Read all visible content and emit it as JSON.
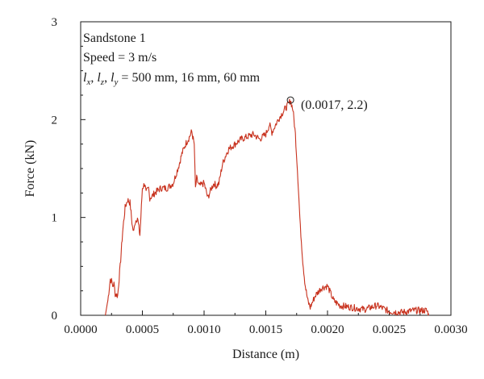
{
  "chart_data": {
    "type": "line",
    "title": "",
    "xlabel": "Distance (m)",
    "ylabel": "Force (kN)",
    "xlim": [
      0.0,
      0.003
    ],
    "ylim": [
      0,
      3
    ],
    "x_ticks": [
      0.0,
      0.0005,
      0.001,
      0.0015,
      0.002,
      0.0025,
      0.003
    ],
    "x_tick_labels": [
      "0.0000",
      "0.0005",
      "0.0010",
      "0.0015",
      "0.0020",
      "0.0025",
      "0.0030"
    ],
    "y_ticks": [
      0,
      1,
      2,
      3
    ],
    "y_tick_labels": [
      "0",
      "1",
      "2",
      "3"
    ],
    "grid": false,
    "line_color": "#c8321e",
    "series": [
      {
        "x": [
          0.0002,
          0.00022,
          0.00024,
          0.00025,
          0.00026,
          0.00027,
          0.00028,
          0.0003,
          0.00032,
          0.00034,
          0.00036,
          0.00038,
          0.0004,
          0.00042,
          0.00043,
          0.00044,
          0.00046,
          0.00048,
          0.0005,
          0.00052,
          0.00053,
          0.00055,
          0.00056,
          0.00058,
          0.0006,
          0.00062,
          0.00065,
          0.0007,
          0.00075,
          0.0008,
          0.00082,
          0.00085,
          0.00088,
          0.0009,
          0.00092,
          0.00093,
          0.00094,
          0.00096,
          0.001,
          0.00103,
          0.00106,
          0.00108,
          0.0011,
          0.00112,
          0.00115,
          0.00118,
          0.0012,
          0.0013,
          0.0014,
          0.00145,
          0.0015,
          0.00153,
          0.00155,
          0.0016,
          0.00165,
          0.00168,
          0.0017,
          0.00172,
          0.00174,
          0.00176,
          0.00178,
          0.0018,
          0.00182,
          0.00184,
          0.00186,
          0.0019,
          0.00195,
          0.002,
          0.00205,
          0.0021,
          0.0022,
          0.0023,
          0.0024,
          0.0025,
          0.0026,
          0.0027,
          0.0028,
          0.00282
        ],
        "y": [
          0.0,
          0.15,
          0.37,
          0.35,
          0.3,
          0.32,
          0.22,
          0.2,
          0.5,
          0.85,
          1.1,
          1.18,
          1.15,
          0.9,
          0.85,
          0.95,
          1.0,
          0.82,
          1.3,
          1.35,
          1.25,
          1.3,
          1.2,
          1.22,
          1.25,
          1.27,
          1.3,
          1.3,
          1.35,
          1.55,
          1.65,
          1.75,
          1.82,
          1.88,
          1.75,
          1.3,
          1.4,
          1.32,
          1.35,
          1.2,
          1.3,
          1.35,
          1.32,
          1.35,
          1.55,
          1.65,
          1.7,
          1.8,
          1.85,
          1.8,
          1.85,
          1.95,
          1.87,
          2.0,
          2.1,
          2.15,
          2.2,
          2.1,
          1.85,
          1.4,
          0.9,
          0.55,
          0.3,
          0.15,
          0.08,
          0.2,
          0.28,
          0.3,
          0.15,
          0.1,
          0.08,
          0.06,
          0.1,
          0.04,
          0.03,
          0.05,
          0.05,
          0.02
        ]
      }
    ],
    "annotations": [
      {
        "text": "Sandstone 1"
      },
      {
        "text": "Speed = 3 m/s"
      },
      {
        "text": ", , = 500 mm, 16 mm, 60 mm",
        "parts": [
          "l",
          "x",
          "l",
          "z",
          "l",
          "y"
        ]
      },
      {
        "text": "(0.0017, 2.2)",
        "point": [
          0.0017,
          2.2
        ]
      }
    ]
  }
}
